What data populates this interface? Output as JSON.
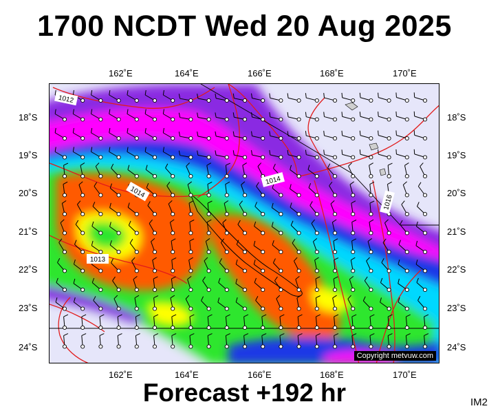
{
  "title": "1700 NCDT Wed 20 Aug 2025",
  "footer": "Forecast +192 hr",
  "code": "IM2",
  "copyright": "Copyright metvuw.com",
  "lon_ticks": [
    "162˚E",
    "164˚E",
    "166˚E",
    "168˚E",
    "170˚E"
  ],
  "lat_ticks": [
    "18˚S",
    "19˚S",
    "20˚S",
    "21˚S",
    "22˚S",
    "23˚S",
    "24˚S"
  ],
  "isobar_labels": [
    "1012",
    "1014",
    "1014",
    "1016",
    "1013"
  ],
  "colors": {
    "pressure_line": "#e21b1b",
    "calm": "#e6e6fa",
    "violet": "#8a2be2",
    "magenta": "#ff00ff",
    "blue": "#1f39e6",
    "cyan": "#00d8ff",
    "green": "#2ee62e",
    "yellow": "#ffff00",
    "orange": "#ff5a00"
  }
}
